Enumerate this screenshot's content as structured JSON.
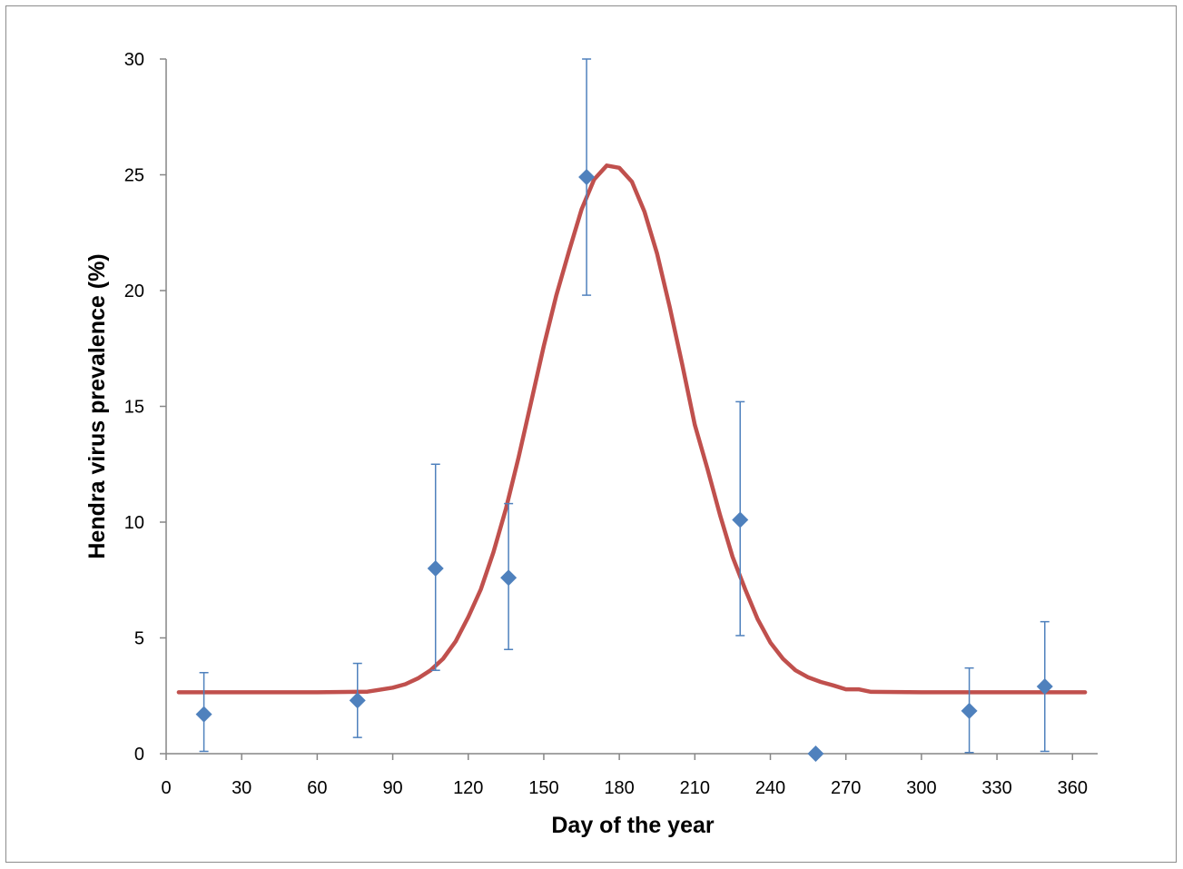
{
  "chart_data": {
    "type": "scatter",
    "title": "",
    "xlabel": "Day of the year",
    "ylabel": "Hendra virus prevalence (%)",
    "xlim": [
      0,
      370
    ],
    "ylim": [
      0,
      30
    ],
    "xticks": [
      0,
      30,
      60,
      90,
      120,
      150,
      180,
      210,
      240,
      270,
      300,
      330,
      360
    ],
    "yticks": [
      0,
      5,
      10,
      15,
      20,
      25,
      30
    ],
    "grid": false,
    "legend": "none",
    "series": [
      {
        "type": "scatter",
        "color": "#4f81bd",
        "marker": "diamond",
        "points": [
          {
            "x": 15,
            "y": 1.7,
            "err_low": 1.6,
            "err_high": 1.8
          },
          {
            "x": 76,
            "y": 2.3,
            "err_low": 1.6,
            "err_high": 1.6
          },
          {
            "x": 107,
            "y": 8.0,
            "err_low": 4.4,
            "err_high": 4.5
          },
          {
            "x": 136,
            "y": 7.6,
            "err_low": 3.1,
            "err_high": 3.2
          },
          {
            "x": 167,
            "y": 24.9,
            "err_low": 5.1,
            "err_high": 5.1
          },
          {
            "x": 228,
            "y": 10.1,
            "err_low": 5.0,
            "err_high": 5.1
          },
          {
            "x": 258,
            "y": 0.0,
            "err_low": 0,
            "err_high": 0
          },
          {
            "x": 319,
            "y": 1.85,
            "err_low": 1.8,
            "err_high": 1.85
          },
          {
            "x": 349,
            "y": 2.9,
            "err_low": 2.8,
            "err_high": 2.8
          }
        ]
      },
      {
        "type": "line",
        "color": "#c0504d",
        "x": [
          5,
          30,
          60,
          80,
          90,
          95,
          100,
          105,
          110,
          115,
          120,
          125,
          130,
          135,
          140,
          145,
          150,
          155,
          160,
          165,
          170,
          175,
          180,
          185,
          190,
          195,
          200,
          205,
          210,
          215,
          220,
          225,
          230,
          235,
          240,
          245,
          250,
          255,
          260,
          265,
          270,
          275,
          280,
          300,
          330,
          365
        ],
        "y": [
          2.65,
          2.65,
          2.65,
          2.68,
          2.85,
          3.0,
          3.25,
          3.6,
          4.1,
          4.85,
          5.9,
          7.1,
          8.7,
          10.6,
          12.8,
          15.2,
          17.6,
          19.8,
          21.7,
          23.5,
          24.8,
          25.4,
          25.3,
          24.7,
          23.4,
          21.6,
          19.3,
          16.8,
          14.2,
          12.3,
          10.3,
          8.5,
          7.1,
          5.8,
          4.8,
          4.1,
          3.6,
          3.3,
          3.1,
          2.95,
          2.78,
          2.78,
          2.67,
          2.65,
          2.65,
          2.65
        ]
      }
    ]
  }
}
